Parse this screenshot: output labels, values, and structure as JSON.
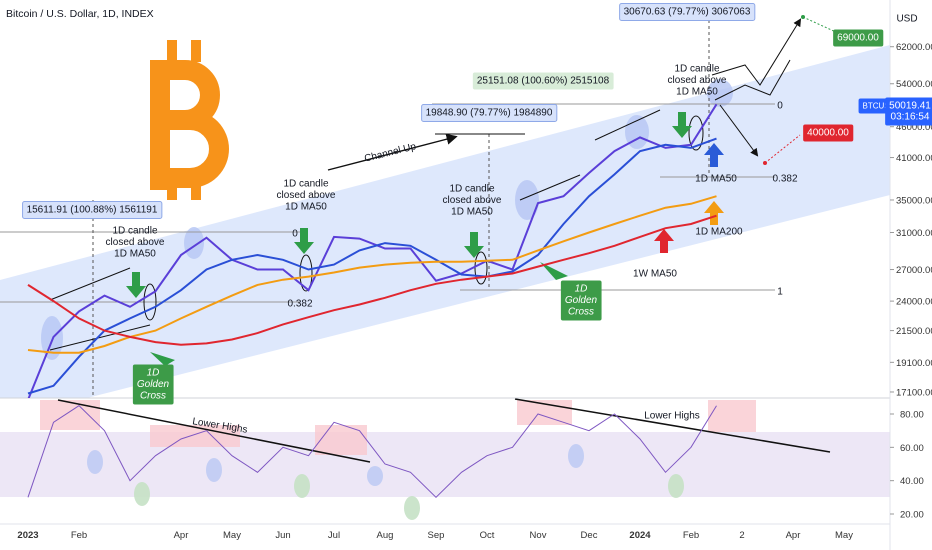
{
  "chart_data": {
    "type": "line",
    "title": "Bitcoin / U.S. Dollar, 1D, INDEX",
    "categories": [
      "2023",
      null,
      "Feb",
      null,
      null,
      null,
      "Apr",
      null,
      "May",
      null,
      "Jun",
      null,
      "Jul",
      null,
      "Aug",
      null,
      "Sep",
      null,
      "Oct",
      null,
      "Nov",
      null,
      "Dec",
      null,
      "2024",
      null,
      "Feb",
      null,
      "2",
      null,
      "Apr",
      null,
      "May"
    ],
    "log_scale": true,
    "ylim": [
      16720,
      73800
    ],
    "yticks": [
      {
        "value": 17100,
        "label": "17100.00"
      },
      {
        "value": 19100,
        "label": "19100.00"
      },
      {
        "value": 21500,
        "label": "21500.00"
      },
      {
        "value": 24000,
        "label": "24000.00"
      },
      {
        "value": 27000,
        "label": "27000.00"
      },
      {
        "value": 31000,
        "label": "31000.00"
      },
      {
        "value": 35000,
        "label": "35000.00"
      },
      {
        "value": 41000,
        "label": "41000.00"
      },
      {
        "value": 46000,
        "label": "46000.00"
      },
      {
        "value": 54000,
        "label": "54000.00"
      },
      {
        "value": 62000,
        "label": "62000.00"
      }
    ],
    "series": [
      {
        "color": "#5a3fd8",
        "values": [
          16600,
          21000,
          23100,
          24500,
          23500,
          24900,
          28500,
          30400,
          28000,
          27000,
          27000,
          25000,
          30500,
          30300,
          29200,
          29200,
          25900,
          26600,
          27900,
          27000,
          34600,
          35500,
          38700,
          42000,
          44200,
          42500,
          43000,
          50019,
          null,
          null,
          null,
          null,
          null
        ]
      },
      {
        "color": "#2a4fd6",
        "values": [
          17000,
          17500,
          19500,
          21500,
          22500,
          23500,
          25000,
          27000,
          28000,
          28500,
          28000,
          27000,
          27500,
          29000,
          29800,
          29500,
          28000,
          26500,
          26300,
          26800,
          28500,
          32000,
          35500,
          38500,
          42000,
          43000,
          42500,
          44000,
          null,
          null,
          null,
          null,
          null
        ]
      },
      {
        "color": "#f39c12",
        "values": [
          20000,
          19800,
          19800,
          20300,
          21000,
          21500,
          22500,
          23500,
          24500,
          25500,
          26000,
          26300,
          26700,
          27200,
          27500,
          27700,
          27800,
          27800,
          27900,
          28000,
          29000,
          30000,
          31000,
          32000,
          33000,
          34000,
          34500,
          35500,
          null,
          null,
          null,
          null,
          null
        ]
      },
      {
        "color": "#e0262f",
        "values": [
          25500,
          24000,
          22500,
          21500,
          21000,
          20600,
          20400,
          20500,
          20800,
          21300,
          22000,
          22600,
          23200,
          23700,
          24300,
          25000,
          25600,
          26000,
          26300,
          26600,
          27300,
          28000,
          28700,
          29500,
          30500,
          31500,
          32000,
          33000,
          null,
          null,
          null,
          null,
          null
        ]
      },
      {
        "color": "#7e57c2",
        "axis": "rsi",
        "values": [
          30,
          75,
          85,
          70,
          40,
          55,
          65,
          70,
          55,
          45,
          60,
          55,
          75,
          70,
          50,
          45,
          30,
          45,
          55,
          60,
          80,
          75,
          70,
          80,
          65,
          45,
          60,
          85,
          null,
          null,
          null,
          null,
          null
        ]
      }
    ],
    "rsi_ylim": [
      15.2,
      89.6
    ],
    "rsi_yticks": [
      {
        "value": 20,
        "label": "20.00"
      },
      {
        "value": 40,
        "label": "40.00"
      },
      {
        "value": 60,
        "label": "60.00"
      },
      {
        "value": 80,
        "label": "80.00"
      }
    ],
    "annotations": [
      [
        "15611.91 (100.88%) 1561191"
      ],
      [
        "19848.90 (79.77%) 1984890"
      ],
      [
        "25151.08 (100.60%) 2515108"
      ],
      [
        "30670.63 (79.77%) 3067063"
      ],
      [
        "1D candle",
        "closed above",
        "1D MA50"
      ],
      [
        "1D candle",
        "closed above",
        "1D MA50"
      ],
      [
        "1D candle",
        "closed above",
        "1D MA50"
      ],
      [
        "1D candle",
        "closed above",
        "1D MA50"
      ],
      [
        "Channel Up"
      ],
      [
        "1D",
        "Golden",
        "Cross"
      ],
      [
        "1D",
        "Golden",
        "Cross"
      ],
      [
        "1D MA50"
      ],
      [
        "1D MA200"
      ],
      [
        "1W MA50"
      ],
      [
        "0"
      ],
      [
        "0.382"
      ],
      [
        "0"
      ],
      [
        "0.382"
      ],
      [
        "1"
      ],
      [
        "Lower Highs"
      ],
      [
        "Lower Highs"
      ],
      [
        "69000.00"
      ],
      [
        "40000.00"
      ],
      [
        "USD"
      ],
      [
        "BTCUSD"
      ],
      [
        "50019.41",
        "03:16:54"
      ]
    ]
  }
}
